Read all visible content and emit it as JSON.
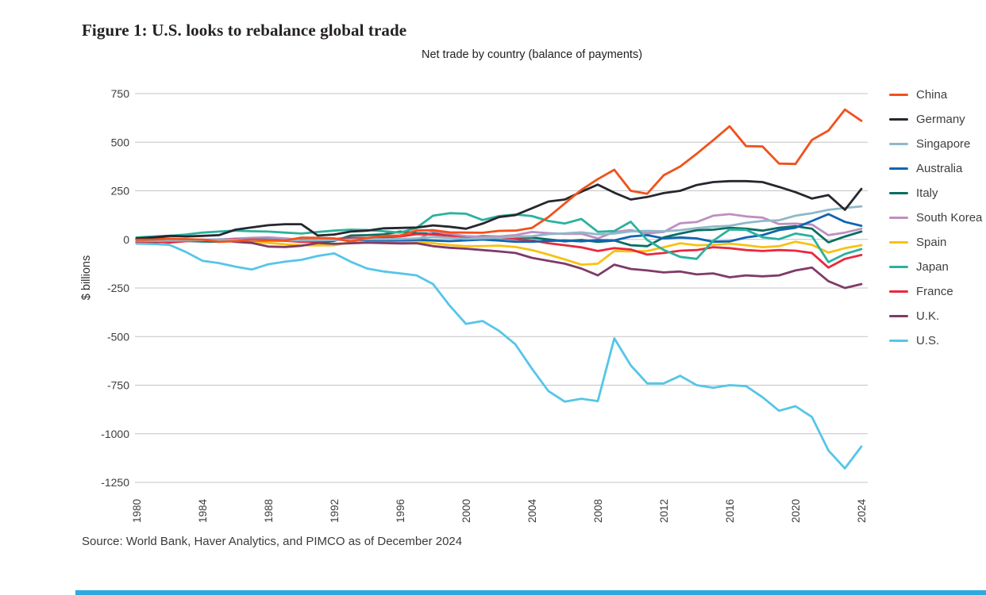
{
  "figure": {
    "title": "Figure 1: U.S. looks to rebalance global trade",
    "source": "Source: World Bank, Haver Analytics, and PIMCO as of December 2024"
  },
  "accent_bar_color": "#2ea9df",
  "chart_data": {
    "type": "line",
    "title": "Net trade by country (balance of payments)",
    "ylabel": "$ billions",
    "ylim": [
      -1250,
      750
    ],
    "ytick_step": 250,
    "grid": "horizontal",
    "grid_color": "#c4c4c4",
    "legend_position": "right",
    "x": [
      1980,
      1981,
      1982,
      1983,
      1984,
      1985,
      1986,
      1987,
      1988,
      1989,
      1990,
      1991,
      1992,
      1993,
      1994,
      1995,
      1996,
      1997,
      1998,
      1999,
      2000,
      2001,
      2002,
      2003,
      2004,
      2005,
      2006,
      2007,
      2008,
      2009,
      2010,
      2011,
      2012,
      2013,
      2014,
      2015,
      2016,
      2017,
      2018,
      2019,
      2020,
      2021,
      2022,
      2023,
      2024
    ],
    "xticks": [
      1980,
      1984,
      1988,
      1992,
      1996,
      2000,
      2004,
      2008,
      2012,
      2016,
      2020,
      2024
    ],
    "draw_order": [
      "Spain",
      "Italy",
      "South Korea",
      "France",
      "U.K.",
      "Australia",
      "Singapore",
      "Japan",
      "Germany",
      "China",
      "U.S."
    ],
    "series": [
      {
        "name": "China",
        "color": "#f1511b",
        "values": [
          -2,
          -1,
          3,
          1,
          -1,
          -13,
          -9,
          -1,
          -5,
          -6,
          9,
          8,
          5,
          -11,
          7,
          18,
          20,
          46,
          47,
          36,
          35,
          34,
          44,
          45,
          59,
          115,
          185,
          255,
          310,
          358,
          250,
          235,
          330,
          375,
          440,
          510,
          582,
          480,
          478,
          390,
          388,
          512,
          560,
          668,
          610
        ]
      },
      {
        "name": "Germany",
        "color": "#26272e",
        "values": [
          5,
          10,
          18,
          15,
          18,
          22,
          50,
          62,
          73,
          78,
          78,
          20,
          25,
          40,
          45,
          57,
          59,
          61,
          72,
          65,
          55,
          81,
          115,
          125,
          160,
          195,
          205,
          245,
          282,
          240,
          205,
          218,
          238,
          250,
          280,
          295,
          300,
          300,
          295,
          270,
          243,
          210,
          228,
          152,
          260
        ]
      },
      {
        "name": "Singapore",
        "color": "#8fb8c9",
        "values": [
          -6,
          -7,
          -6,
          -5,
          -4,
          -3,
          -3,
          -4,
          -4,
          -5,
          -5,
          -4,
          -3,
          -2,
          1,
          1,
          2,
          5,
          12,
          8,
          3,
          6,
          8,
          14,
          16,
          27,
          31,
          36,
          26,
          30,
          41,
          44,
          42,
          47,
          58,
          66,
          70,
          85,
          95,
          98,
          122,
          135,
          152,
          162,
          170
        ]
      },
      {
        "name": "Australia",
        "color": "#1065b0",
        "values": [
          -2,
          -4,
          -5,
          -2,
          -3,
          -2,
          -3,
          -2,
          -2,
          -5,
          -4,
          -3,
          -2,
          -1,
          -4,
          -6,
          -4,
          -2,
          -6,
          -9,
          -5,
          -1,
          -6,
          -12,
          -12,
          -8,
          -6,
          -10,
          -4,
          -5,
          15,
          22,
          5,
          10,
          5,
          -12,
          -10,
          10,
          22,
          48,
          60,
          95,
          130,
          90,
          70
        ]
      },
      {
        "name": "Italy",
        "color": "#0a6e62",
        "values": [
          -16,
          -14,
          -12,
          -8,
          -11,
          -12,
          -2,
          -1,
          -2,
          -2,
          -12,
          -13,
          -8,
          20,
          22,
          26,
          40,
          32,
          30,
          22,
          10,
          16,
          14,
          10,
          9,
          0,
          -10,
          -3,
          -13,
          -6,
          -30,
          -35,
          10,
          30,
          47,
          50,
          60,
          55,
          45,
          60,
          68,
          55,
          -15,
          15,
          40
        ]
      },
      {
        "name": "South Korea",
        "color": "#be8fc0",
        "values": [
          -5,
          -4,
          -3,
          -2,
          -1,
          -1,
          4,
          8,
          11,
          5,
          -2,
          -7,
          -2,
          2,
          -3,
          -4,
          -15,
          -3,
          42,
          28,
          17,
          13,
          15,
          22,
          38,
          32,
          28,
          29,
          5,
          38,
          48,
          31,
          38,
          83,
          89,
          122,
          130,
          118,
          112,
          79,
          81,
          76,
          22,
          35,
          55
        ]
      },
      {
        "name": "Spain",
        "color": "#f7c213",
        "values": [
          -12,
          -10,
          -9,
          -8,
          -5,
          -6,
          -7,
          -13,
          -18,
          -25,
          -30,
          -31,
          -30,
          -14,
          -15,
          -18,
          -15,
          -12,
          -20,
          -29,
          -35,
          -34,
          -32,
          -39,
          -55,
          -78,
          -103,
          -130,
          -125,
          -60,
          -62,
          -60,
          -40,
          -20,
          -30,
          -28,
          -22,
          -30,
          -40,
          -35,
          -12,
          -28,
          -68,
          -45,
          -30
        ]
      },
      {
        "name": "Japan",
        "color": "#2bb19e",
        "values": [
          10,
          15,
          18,
          25,
          35,
          40,
          45,
          42,
          40,
          35,
          30,
          38,
          45,
          50,
          48,
          42,
          35,
          60,
          122,
          135,
          132,
          100,
          120,
          128,
          120,
          95,
          82,
          105,
          39,
          43,
          91,
          -4,
          -54,
          -90,
          -100,
          -7,
          51,
          49,
          11,
          1,
          30,
          16,
          -117,
          -75,
          -50
        ]
      },
      {
        "name": "France",
        "color": "#e9293e",
        "values": [
          -14,
          -10,
          -16,
          -9,
          -4,
          -3,
          0,
          -6,
          -6,
          -7,
          -13,
          -10,
          2,
          8,
          7,
          11,
          15,
          27,
          25,
          19,
          3,
          4,
          8,
          2,
          -5,
          -20,
          -30,
          -41,
          -60,
          -45,
          -52,
          -78,
          -70,
          -58,
          -55,
          -40,
          -45,
          -55,
          -60,
          -55,
          -58,
          -70,
          -145,
          -100,
          -80
        ]
      },
      {
        "name": "U.K.",
        "color": "#7e3b68",
        "values": [
          3,
          5,
          4,
          -2,
          -6,
          -3,
          -13,
          -18,
          -37,
          -39,
          -33,
          -18,
          -23,
          -20,
          -17,
          -19,
          -21,
          -20,
          -35,
          -43,
          -48,
          -55,
          -62,
          -70,
          -95,
          -110,
          -125,
          -150,
          -185,
          -130,
          -152,
          -160,
          -170,
          -165,
          -180,
          -175,
          -195,
          -185,
          -190,
          -185,
          -160,
          -145,
          -215,
          -250,
          -230
        ]
      },
      {
        "name": "U.S.",
        "color": "#56c5e8",
        "values": [
          -22,
          -24,
          -28,
          -65,
          -110,
          -122,
          -140,
          -155,
          -128,
          -115,
          -105,
          -85,
          -72,
          -115,
          -150,
          -165,
          -175,
          -185,
          -230,
          -340,
          -435,
          -420,
          -470,
          -540,
          -665,
          -780,
          -835,
          -820,
          -832,
          -509,
          -648,
          -741,
          -741,
          -702,
          -750,
          -763,
          -750,
          -755,
          -812,
          -882,
          -858,
          -914,
          -1086,
          -1178,
          -1066
        ]
      }
    ]
  }
}
